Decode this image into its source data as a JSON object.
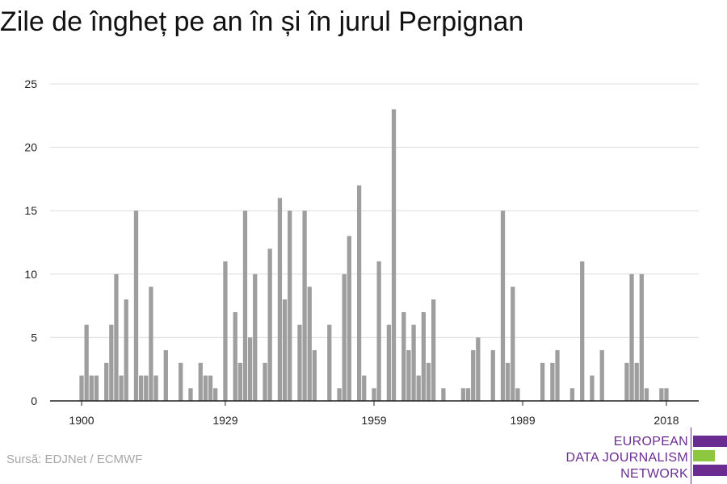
{
  "chart_data": {
    "type": "bar",
    "title": "Zile de îngheț pe an în și în jurul Perpignan",
    "xlabel": "",
    "ylabel": "",
    "xlim": [
      1900,
      2018
    ],
    "ylim": [
      0,
      25
    ],
    "yticks": [
      0,
      5,
      10,
      15,
      20,
      25
    ],
    "xticks": [
      1900,
      1929,
      1959,
      1989,
      2018
    ],
    "grid": true,
    "x": [
      1900,
      1901,
      1902,
      1903,
      1904,
      1905,
      1906,
      1907,
      1908,
      1909,
      1910,
      1911,
      1912,
      1913,
      1914,
      1915,
      1916,
      1917,
      1918,
      1919,
      1920,
      1921,
      1922,
      1923,
      1924,
      1925,
      1926,
      1927,
      1928,
      1929,
      1930,
      1931,
      1932,
      1933,
      1934,
      1935,
      1936,
      1937,
      1938,
      1939,
      1940,
      1941,
      1942,
      1943,
      1944,
      1945,
      1946,
      1947,
      1948,
      1949,
      1950,
      1951,
      1952,
      1953,
      1954,
      1955,
      1956,
      1957,
      1958,
      1959,
      1960,
      1961,
      1962,
      1963,
      1964,
      1965,
      1966,
      1967,
      1968,
      1969,
      1970,
      1971,
      1972,
      1973,
      1974,
      1975,
      1976,
      1977,
      1978,
      1979,
      1980,
      1981,
      1982,
      1983,
      1984,
      1985,
      1986,
      1987,
      1988,
      1989,
      1990,
      1991,
      1992,
      1993,
      1994,
      1995,
      1996,
      1997,
      1998,
      1999,
      2000,
      2001,
      2002,
      2003,
      2004,
      2005,
      2006,
      2007,
      2008,
      2009,
      2010,
      2011,
      2012,
      2013,
      2014,
      2015,
      2016,
      2017,
      2018
    ],
    "values": [
      2,
      6,
      2,
      2,
      0,
      3,
      6,
      10,
      2,
      8,
      0,
      15,
      2,
      2,
      9,
      2,
      0,
      4,
      0,
      0,
      3,
      0,
      1,
      0,
      3,
      2,
      2,
      1,
      0,
      11,
      0,
      7,
      3,
      15,
      5,
      10,
      0,
      3,
      12,
      0,
      16,
      8,
      15,
      0,
      6,
      15,
      9,
      4,
      0,
      0,
      6,
      0,
      1,
      10,
      13,
      0,
      17,
      2,
      0,
      1,
      11,
      0,
      6,
      23,
      0,
      7,
      4,
      6,
      2,
      7,
      3,
      8,
      0,
      1,
      0,
      0,
      0,
      1,
      1,
      4,
      5,
      0,
      0,
      4,
      0,
      15,
      3,
      9,
      1,
      0,
      0,
      0,
      0,
      3,
      0,
      3,
      4,
      0,
      0,
      1,
      0,
      11,
      0,
      2,
      0,
      4,
      0,
      0,
      0,
      0,
      3,
      10,
      3,
      10,
      1,
      0,
      0,
      1,
      1
    ]
  },
  "footer": {
    "source": "Sursă: EDJNet / ECMWF"
  },
  "logo": {
    "line1": "EUROPEAN",
    "line2": "DATA JOURNALISM",
    "line3": "NETWORK",
    "primary_color": "#6b2c91",
    "accent_color": "#8dc63f"
  },
  "colors": {
    "bar": "#9e9e9e",
    "grid": "#dcdcdc",
    "axis": "#222222"
  }
}
